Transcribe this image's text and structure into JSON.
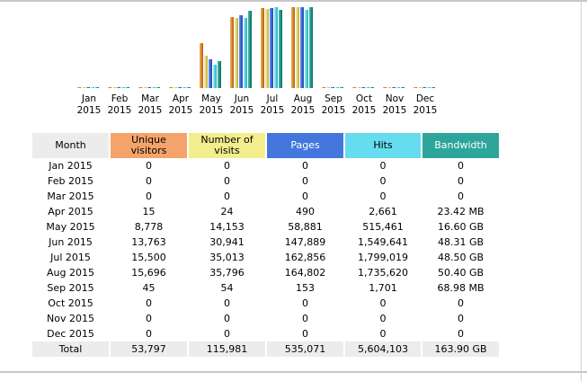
{
  "colors": {
    "month_header": "#ececec",
    "unique_visitors": "#f4a46a",
    "visits": "#f3ee8d",
    "pages": "#4477dd",
    "hits": "#66ddee",
    "bandwidth": "#2ea59a"
  },
  "chart_data": {
    "type": "bar",
    "categories": [
      "Jan 2015",
      "Feb 2015",
      "Mar 2015",
      "Apr 2015",
      "May 2015",
      "Jun 2015",
      "Jul 2015",
      "Aug 2015",
      "Sep 2015",
      "Oct 2015",
      "Nov 2015",
      "Dec 2015"
    ],
    "series": [
      {
        "name": "Unique visitors",
        "values": [
          0,
          0,
          0,
          15,
          8778,
          13763,
          15500,
          15696,
          45,
          0,
          0,
          0
        ]
      },
      {
        "name": "Number of visits",
        "values": [
          0,
          0,
          0,
          24,
          14153,
          30941,
          35013,
          35796,
          54,
          0,
          0,
          0
        ]
      },
      {
        "name": "Pages",
        "values": [
          0,
          0,
          0,
          490,
          58881,
          147889,
          162856,
          164802,
          153,
          0,
          0,
          0
        ]
      },
      {
        "name": "Hits",
        "values": [
          0,
          0,
          0,
          2661,
          515461,
          1549641,
          1799019,
          1735620,
          1701,
          0,
          0,
          0
        ]
      },
      {
        "name": "Bandwidth",
        "values": [
          "0",
          "0",
          "0",
          "23.42 MB",
          "16.60 GB",
          "48.31 GB",
          "48.50 GB",
          "50.40 GB",
          "68.98 MB",
          "0",
          "0",
          "0"
        ]
      }
    ]
  },
  "month_labels": [
    {
      "m": "Jan",
      "y": "2015"
    },
    {
      "m": "Feb",
      "y": "2015"
    },
    {
      "m": "Mar",
      "y": "2015"
    },
    {
      "m": "Apr",
      "y": "2015"
    },
    {
      "m": "May",
      "y": "2015"
    },
    {
      "m": "Jun",
      "y": "2015"
    },
    {
      "m": "Jul",
      "y": "2015"
    },
    {
      "m": "Aug",
      "y": "2015"
    },
    {
      "m": "Sep",
      "y": "2015"
    },
    {
      "m": "Oct",
      "y": "2015"
    },
    {
      "m": "Nov",
      "y": "2015"
    },
    {
      "m": "Dec",
      "y": "2015"
    }
  ],
  "table": {
    "headers": {
      "month": "Month",
      "unique_visitors": "Unique visitors",
      "visits": "Number of visits",
      "pages": "Pages",
      "hits": "Hits",
      "bandwidth": "Bandwidth"
    },
    "rows": [
      [
        "Jan 2015",
        "0",
        "0",
        "0",
        "0",
        "0"
      ],
      [
        "Feb 2015",
        "0",
        "0",
        "0",
        "0",
        "0"
      ],
      [
        "Mar 2015",
        "0",
        "0",
        "0",
        "0",
        "0"
      ],
      [
        "Apr 2015",
        "15",
        "24",
        "490",
        "2,661",
        "23.42 MB"
      ],
      [
        "May 2015",
        "8,778",
        "14,153",
        "58,881",
        "515,461",
        "16.60 GB"
      ],
      [
        "Jun 2015",
        "13,763",
        "30,941",
        "147,889",
        "1,549,641",
        "48.31 GB"
      ],
      [
        "Jul 2015",
        "15,500",
        "35,013",
        "162,856",
        "1,799,019",
        "48.50 GB"
      ],
      [
        "Aug 2015",
        "15,696",
        "35,796",
        "164,802",
        "1,735,620",
        "50.40 GB"
      ],
      [
        "Sep 2015",
        "45",
        "54",
        "153",
        "1,701",
        "68.98 MB"
      ],
      [
        "Oct 2015",
        "0",
        "0",
        "0",
        "0",
        "0"
      ],
      [
        "Nov 2015",
        "0",
        "0",
        "0",
        "0",
        "0"
      ],
      [
        "Dec 2015",
        "0",
        "0",
        "0",
        "0",
        "0"
      ]
    ],
    "total": [
      "Total",
      "53,797",
      "115,981",
      "535,071",
      "5,604,103",
      "163.90 GB"
    ]
  }
}
